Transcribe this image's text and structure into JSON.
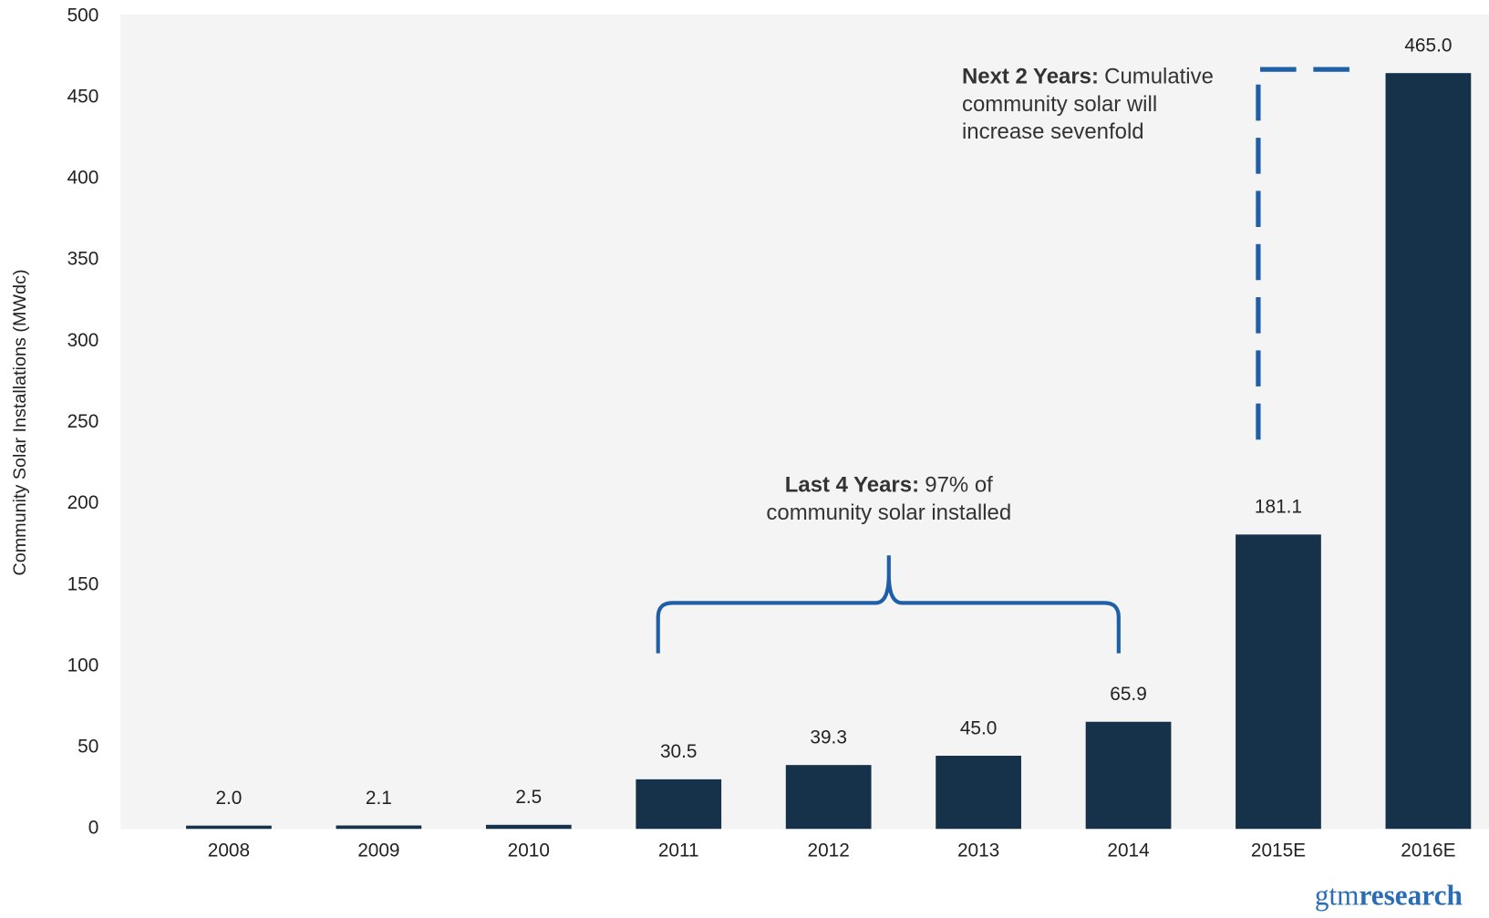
{
  "chart_data": {
    "type": "bar",
    "y_label": "Community Solar Installations (MWdc)",
    "categories": [
      "2008",
      "2009",
      "2010",
      "2011",
      "2012",
      "2013",
      "2014",
      "2015E",
      "2016E"
    ],
    "values": [
      2,
      2.1,
      2.5,
      30.5,
      39.3,
      45,
      65.9,
      181.1,
      465
    ],
    "value_labels": [
      "2.0",
      "2.1",
      "2.5",
      "30.5",
      "39.3",
      "45.0",
      "65.9",
      "181.1",
      "465.0"
    ],
    "color": "#15324a",
    "ylim": [
      0,
      500
    ],
    "yticks": [
      0,
      50,
      100,
      150,
      200,
      250,
      300,
      350,
      400,
      450,
      500
    ],
    "grid": false,
    "annotations": [
      {
        "bold": "Next 2 Years:",
        "lines": [
          "Cumulative",
          "community solar will",
          "increase sevenfold"
        ]
      },
      {
        "bold": "Last 4 Years:",
        "lines": [
          "97% of",
          "community solar installed"
        ]
      }
    ],
    "logo": {
      "light": "gtm",
      "bold": "research"
    }
  }
}
